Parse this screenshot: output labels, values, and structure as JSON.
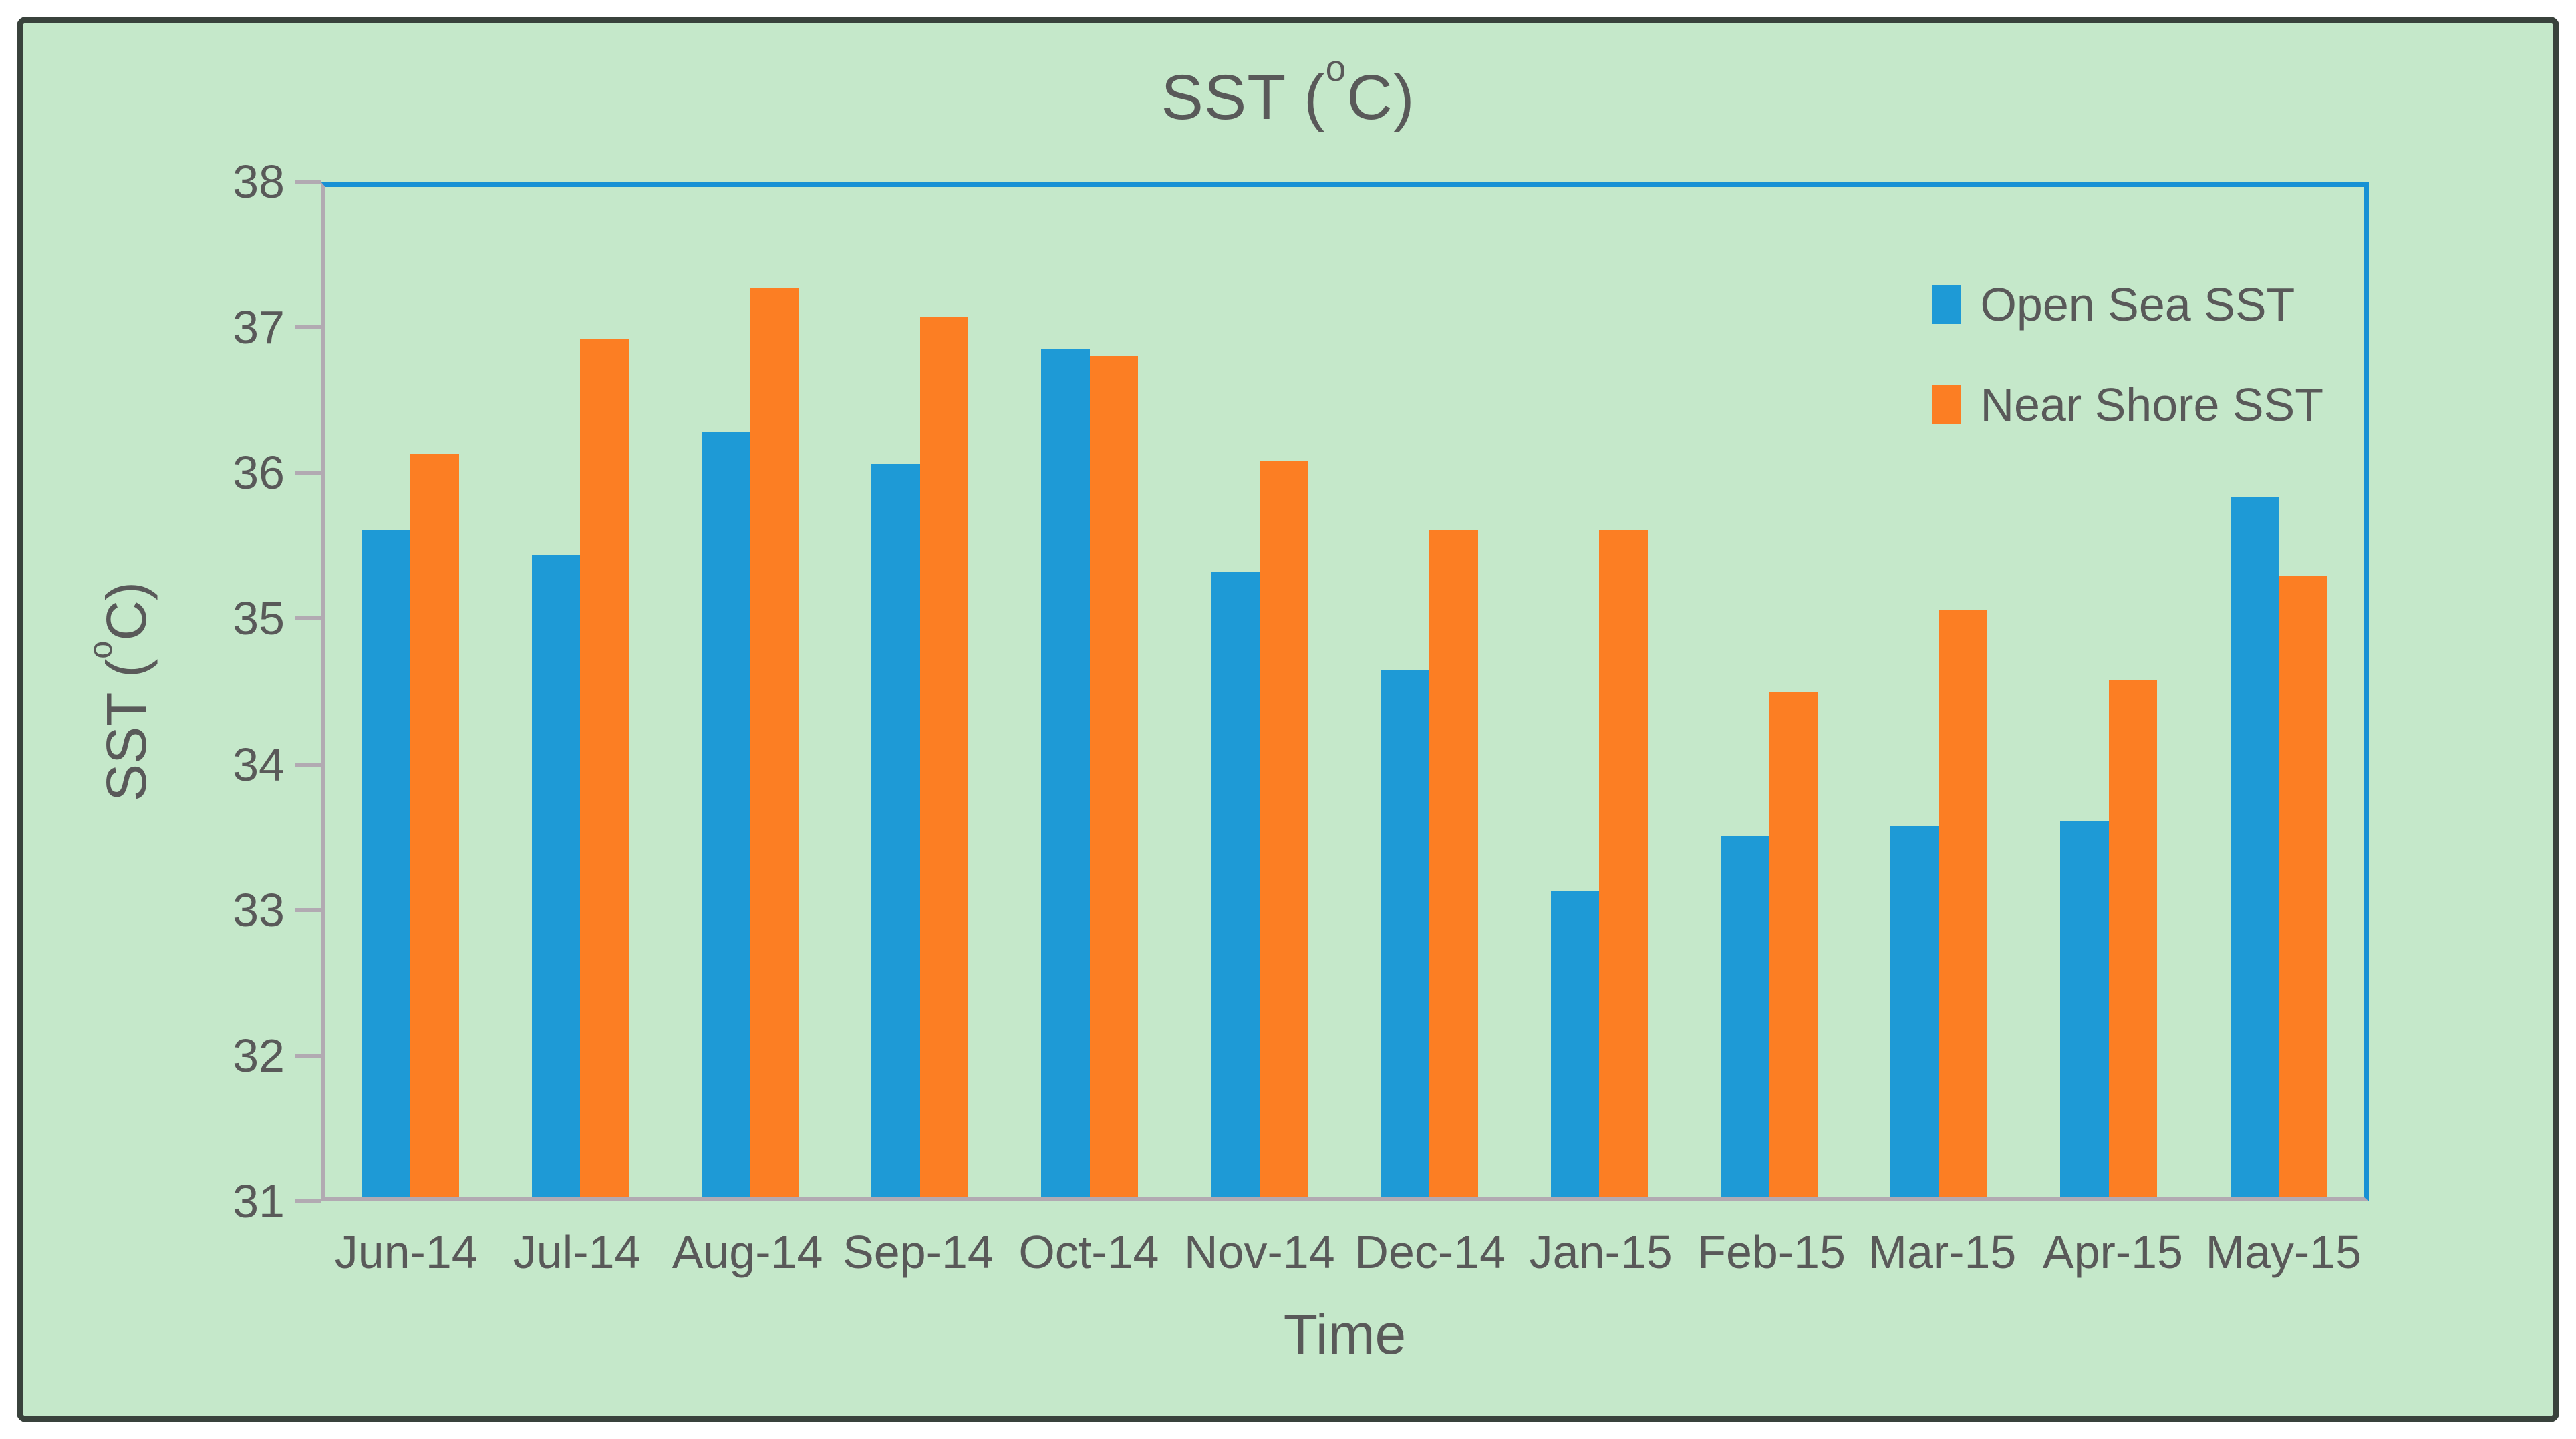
{
  "page": {
    "outer_background": "#ffffff",
    "frame_border_color": "#39423c",
    "chart_background": "#c5e8ca",
    "text_color": "#595959",
    "axis_line_color": "#b2aab2",
    "plot_border_color": "#1791d4"
  },
  "display": {
    "title_parts": {
      "pre": "SST (",
      "sup": "o",
      "post": "C)"
    },
    "y_axis_title_parts": {
      "pre": "SST (",
      "sup": "o",
      "post": "C)"
    }
  },
  "chart_data": {
    "type": "bar",
    "title": "SST (°C)",
    "xlabel": "Time",
    "ylabel": "SST (°C)",
    "categories": [
      "Jun-14",
      "Jul-14",
      "Aug-14",
      "Sep-14",
      "Oct-14",
      "Nov-14",
      "Dec-14",
      "Jan-15",
      "Feb-15",
      "Mar-15",
      "Apr-15",
      "May-15"
    ],
    "series": [
      {
        "name": "Open Sea SST",
        "color": "#1e9ad6",
        "values": [
          35.62,
          35.45,
          36.3,
          36.08,
          36.88,
          35.33,
          34.65,
          33.12,
          33.5,
          33.57,
          33.6,
          35.85
        ]
      },
      {
        "name": "Near Shore SST",
        "color": "#fc7e23",
        "values": [
          36.15,
          36.95,
          37.3,
          37.1,
          36.83,
          36.1,
          35.62,
          35.62,
          34.5,
          35.07,
          34.58,
          35.3
        ]
      }
    ],
    "ylim": [
      31,
      38
    ],
    "ytick_step": 1,
    "grid": false,
    "legend_position": "top-right"
  }
}
